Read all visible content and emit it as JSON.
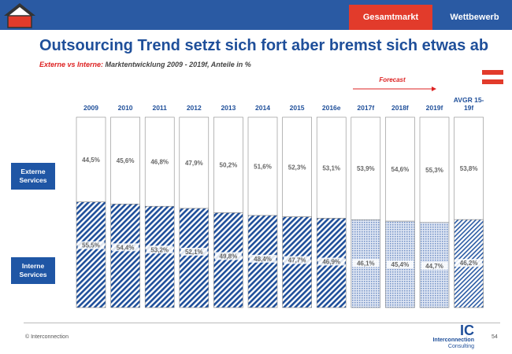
{
  "header": {
    "tabs": [
      {
        "label": "Gesamtmarkt",
        "active": true
      },
      {
        "label": "Wettbewerb",
        "active": false
      }
    ],
    "accent_color": "#e23b2b",
    "bar_color": "#2a5aa3"
  },
  "slide": {
    "title": "Outsourcing Trend setzt sich fort aber bremst sich etwas ab",
    "subtitle_em": "Externe vs Interne:",
    "subtitle_rest": " Marktentwicklung 2009 - 2019f, Anteile in %",
    "forecast_label": "Forecast",
    "side_labels": {
      "externe": "Externe Services",
      "interne": "Interne Services"
    }
  },
  "footer": {
    "copyright": "© Interconnection",
    "page_number": "54",
    "logo_mark": "IC",
    "logo_name": "Interconnection",
    "logo_sub": "Consulting"
  },
  "chart_data": {
    "type": "bar",
    "stacked": true,
    "categories": [
      "2009",
      "2010",
      "2011",
      "2012",
      "2013",
      "2014",
      "2015",
      "2016e",
      "2017f",
      "2018f",
      "2019f",
      "AVGR 15-19f"
    ],
    "series": [
      {
        "name": "Externe Services",
        "values": [
          44.5,
          45.6,
          46.8,
          47.9,
          50.2,
          51.6,
          52.3,
          53.1,
          53.9,
          54.6,
          55.3,
          53.8
        ],
        "labels": [
          "44,5%",
          "45,6%",
          "46,8%",
          "47,9%",
          "50,2%",
          "51,6%",
          "52,3%",
          "53,1%",
          "53,9%",
          "54,6%",
          "55,3%",
          "53,8%"
        ]
      },
      {
        "name": "Interne Services",
        "values": [
          55.5,
          54.4,
          53.2,
          52.1,
          49.8,
          48.4,
          47.7,
          46.9,
          46.1,
          45.4,
          44.7,
          46.2
        ],
        "labels": [
          "55,5%",
          "54,4%",
          "53,2%",
          "52,1%",
          "49,8%",
          "48,4%",
          "47,7%",
          "46,9%",
          "46,1%",
          "45,4%",
          "44,7%",
          "46,2%"
        ]
      }
    ],
    "forecast_categories": [
      "2017f",
      "2018f",
      "2019f"
    ],
    "colors": {
      "externe": "#ffffff",
      "interne": "#1f4f9a"
    }
  }
}
